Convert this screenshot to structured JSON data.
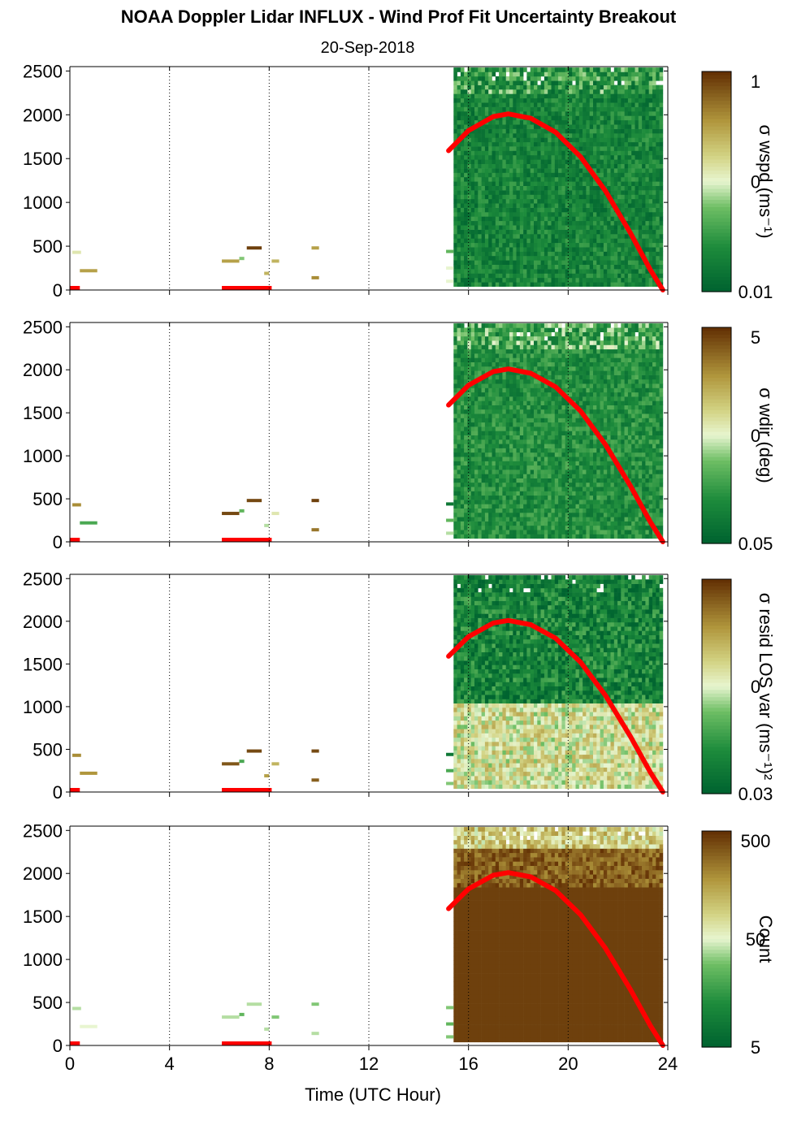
{
  "title": "NOAA Doppler Lidar INFLUX - Wind Prof Fit Uncertainty Breakout",
  "subtitle": "20-Sep-2018",
  "chart_data": [
    {
      "type": "heatmap",
      "ylabel_colorbar": "σ wspd (ms⁻¹)",
      "colorbar_ticks": [
        "1",
        "0",
        "0.01"
      ],
      "colorbar_scale": "log",
      "xlim": [
        0,
        24
      ],
      "ylim": [
        0,
        2550
      ],
      "y_ticks": [
        0,
        500,
        1000,
        1500,
        2000,
        2500
      ],
      "x_ticks": [
        0,
        4,
        8,
        12,
        16,
        20,
        24
      ],
      "field_level": 0.15,
      "scan_start_hour": 15.4,
      "scan_end_hour": 23.8,
      "scan_top_m": 2500,
      "scan_bottom_m": 40,
      "grid": "vertical dotted"
    },
    {
      "type": "heatmap",
      "ylabel_colorbar": "σ wdir (deg)",
      "colorbar_ticks": [
        "5",
        "0",
        "0.05"
      ],
      "colorbar_scale": "log",
      "xlim": [
        0,
        24
      ],
      "ylim": [
        0,
        2550
      ],
      "y_ticks": [
        0,
        500,
        1000,
        1500,
        2000,
        2500
      ],
      "x_ticks": [
        0,
        4,
        8,
        12,
        16,
        20,
        24
      ],
      "field_level": 0.2,
      "scan_start_hour": 15.4,
      "scan_end_hour": 23.8,
      "scan_top_m": 2500,
      "scan_bottom_m": 40,
      "grid": "vertical dotted"
    },
    {
      "type": "heatmap",
      "ylabel_colorbar": "σ resid LOS var (ms⁻¹)²",
      "colorbar_ticks": [
        "",
        "0",
        "0.03"
      ],
      "colorbar_scale": "log",
      "xlim": [
        0,
        24
      ],
      "ylim": [
        0,
        2550
      ],
      "y_ticks": [
        0,
        500,
        1000,
        1500,
        2000,
        2500
      ],
      "x_ticks": [
        0,
        4,
        8,
        12,
        16,
        20,
        24
      ],
      "field_level": 0.55,
      "scan_start_hour": 15.4,
      "scan_end_hour": 23.8,
      "scan_top_m": 2500,
      "scan_bottom_m": 40,
      "grid": "vertical dotted"
    },
    {
      "type": "heatmap",
      "ylabel_colorbar": "Count",
      "colorbar_ticks": [
        "500",
        "50",
        "5"
      ],
      "colorbar_scale": "log",
      "xlim": [
        0,
        24
      ],
      "ylim": [
        0,
        2550
      ],
      "y_ticks": [
        0,
        500,
        1000,
        1500,
        2000,
        2500
      ],
      "x_ticks": [
        0,
        4,
        8,
        12,
        16,
        20,
        24
      ],
      "xlabel": "Time (UTC Hour)",
      "field_level": 0.97,
      "scan_start_hour": 15.4,
      "scan_end_hour": 23.8,
      "scan_top_m": 2500,
      "scan_bottom_m": 40,
      "grid": "vertical dotted"
    }
  ],
  "boundary_layer_curve": {
    "color": "#ff0000",
    "points": [
      [
        15.2,
        1590
      ],
      [
        16.0,
        1820
      ],
      [
        17.0,
        1980
      ],
      [
        17.6,
        2010
      ],
      [
        18.5,
        1960
      ],
      [
        19.5,
        1800
      ],
      [
        20.5,
        1520
      ],
      [
        21.5,
        1130
      ],
      [
        22.5,
        650
      ],
      [
        23.3,
        230
      ],
      [
        23.8,
        0
      ]
    ]
  },
  "red_bars": [
    [
      0.0,
      0.4
    ],
    [
      6.1,
      8.1
    ]
  ],
  "early_segments": [
    {
      "x0": 0.1,
      "x1": 0.45,
      "y": 430,
      "levels": [
        0.55,
        0.8,
        0.8,
        0.45
      ]
    },
    {
      "x0": 0.4,
      "x1": 1.1,
      "y": 220,
      "levels": [
        0.75,
        0.3,
        0.78,
        0.5
      ]
    },
    {
      "x0": 6.1,
      "x1": 6.8,
      "y": 330,
      "levels": [
        0.75,
        0.95,
        0.92,
        0.45
      ]
    },
    {
      "x0": 6.8,
      "x1": 7.0,
      "y": 360,
      "levels": [
        0.4,
        0.35,
        0.3,
        0.35
      ]
    },
    {
      "x0": 7.1,
      "x1": 7.7,
      "y": 480,
      "levels": [
        0.97,
        0.95,
        0.95,
        0.45
      ]
    },
    {
      "x0": 7.8,
      "x1": 8.0,
      "y": 190,
      "levels": [
        0.7,
        0.45,
        0.75,
        0.45
      ]
    },
    {
      "x0": 8.1,
      "x1": 8.4,
      "y": 330,
      "levels": [
        0.7,
        0.55,
        0.7,
        0.4
      ]
    },
    {
      "x0": 9.7,
      "x1": 10.0,
      "y": 480,
      "levels": [
        0.75,
        0.97,
        0.95,
        0.4
      ]
    },
    {
      "x0": 9.7,
      "x1": 10.0,
      "y": 140,
      "levels": [
        0.8,
        0.85,
        0.9,
        0.45
      ]
    },
    {
      "x0": 15.1,
      "x1": 15.4,
      "y": 440,
      "levels": [
        0.35,
        0.1,
        0.1,
        0.4
      ]
    },
    {
      "x0": 15.1,
      "x1": 15.4,
      "y": 250,
      "levels": [
        0.5,
        0.35,
        0.3,
        0.35
      ]
    },
    {
      "x0": 15.1,
      "x1": 15.4,
      "y": 100,
      "levels": [
        0.5,
        0.45,
        0.4,
        0.4
      ]
    }
  ]
}
